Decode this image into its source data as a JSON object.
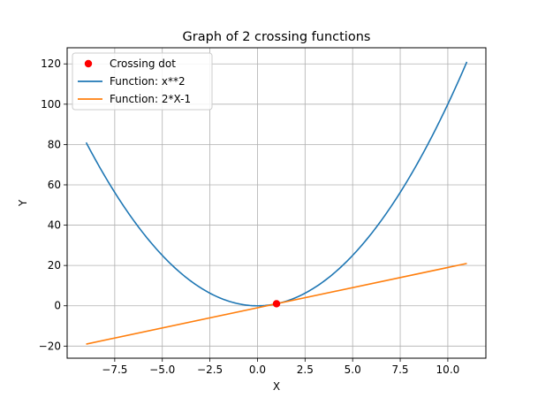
{
  "chart_data": {
    "type": "line",
    "title": "Graph of 2 crossing functions",
    "xlabel": "X",
    "ylabel": "Y",
    "xlim": [
      -10,
      12
    ],
    "ylim": [
      -26,
      128
    ],
    "xticks": [
      -7.5,
      -5.0,
      -2.5,
      0.0,
      2.5,
      5.0,
      7.5,
      10.0
    ],
    "xtick_labels": [
      "−7.5",
      "−5.0",
      "−2.5",
      "0.0",
      "2.5",
      "5.0",
      "7.5",
      "10.0"
    ],
    "yticks": [
      -20,
      0,
      20,
      40,
      60,
      80,
      100,
      120
    ],
    "ytick_labels": [
      "−20",
      "0",
      "20",
      "40",
      "60",
      "80",
      "100",
      "120"
    ],
    "grid": true,
    "legend_position": "top-left",
    "series": [
      {
        "name": "Function: x**2",
        "kind": "line",
        "color": "#1f77b4",
        "x": [
          -9,
          -8,
          -7,
          -6,
          -5,
          -4,
          -3,
          -2,
          -1,
          0,
          1,
          2,
          3,
          4,
          5,
          6,
          7,
          8,
          9,
          10,
          11
        ],
        "y": [
          81,
          64,
          49,
          36,
          25,
          16,
          9,
          4,
          1,
          0,
          1,
          4,
          9,
          16,
          25,
          36,
          49,
          64,
          81,
          100,
          121
        ]
      },
      {
        "name": "Function: 2*X-1",
        "kind": "line",
        "color": "#ff7f0e",
        "x": [
          -9,
          11
        ],
        "y": [
          -19,
          21
        ]
      }
    ],
    "points": [
      {
        "name": "Crossing dot",
        "x": 1,
        "y": 1,
        "color": "#ff0000"
      }
    ]
  }
}
